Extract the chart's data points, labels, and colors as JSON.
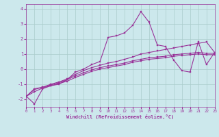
{
  "title": "",
  "xlabel": "Windchill (Refroidissement éolien,°C)",
  "ylabel": "",
  "bg_color": "#cce8ec",
  "line_color": "#993399",
  "grid_color": "#aacccc",
  "x_min": 0,
  "x_max": 23,
  "y_min": -2.5,
  "y_max": 4.3,
  "yticks": [
    -2,
    -1,
    0,
    1,
    2,
    3,
    4
  ],
  "xticks": [
    0,
    1,
    2,
    3,
    4,
    5,
    6,
    7,
    8,
    9,
    10,
    11,
    12,
    13,
    14,
    15,
    16,
    17,
    18,
    19,
    20,
    21,
    22,
    23
  ],
  "lines": [
    {
      "x": [
        0,
        1,
        2,
        3,
        4,
        5,
        6,
        7,
        8,
        9,
        10,
        11,
        12,
        13,
        14,
        15,
        16,
        17,
        18,
        19,
        20,
        21,
        22,
        23
      ],
      "y": [
        -1.8,
        -2.3,
        -1.3,
        -1.1,
        -1.0,
        -0.7,
        -0.2,
        0.0,
        0.3,
        0.5,
        2.1,
        2.2,
        2.4,
        2.9,
        3.8,
        3.1,
        1.6,
        1.5,
        0.6,
        -0.1,
        -0.2,
        1.8,
        0.3,
        1.1
      ]
    },
    {
      "x": [
        0,
        1,
        2,
        3,
        4,
        5,
        6,
        7,
        8,
        9,
        10,
        11,
        12,
        13,
        14,
        15,
        16,
        17,
        18,
        19,
        20,
        21,
        22,
        23
      ],
      "y": [
        -1.8,
        -1.3,
        -1.2,
        -1.0,
        -0.85,
        -0.65,
        -0.35,
        -0.1,
        0.1,
        0.25,
        0.4,
        0.5,
        0.65,
        0.8,
        1.0,
        1.1,
        1.2,
        1.3,
        1.4,
        1.5,
        1.6,
        1.7,
        1.8,
        1.1
      ]
    },
    {
      "x": [
        0,
        1,
        2,
        3,
        4,
        5,
        6,
        7,
        8,
        9,
        10,
        11,
        12,
        13,
        14,
        15,
        16,
        17,
        18,
        19,
        20,
        21,
        22,
        23
      ],
      "y": [
        -1.8,
        -1.35,
        -1.2,
        -1.05,
        -0.9,
        -0.7,
        -0.45,
        -0.25,
        -0.05,
        0.1,
        0.2,
        0.3,
        0.4,
        0.55,
        0.65,
        0.75,
        0.8,
        0.85,
        0.95,
        1.0,
        1.05,
        1.1,
        1.05,
        1.05
      ]
    },
    {
      "x": [
        0,
        1,
        2,
        3,
        4,
        5,
        6,
        7,
        8,
        9,
        10,
        11,
        12,
        13,
        14,
        15,
        16,
        17,
        18,
        19,
        20,
        21,
        22,
        23
      ],
      "y": [
        -1.8,
        -1.5,
        -1.25,
        -1.1,
        -0.95,
        -0.8,
        -0.55,
        -0.35,
        -0.15,
        0.0,
        0.1,
        0.2,
        0.3,
        0.45,
        0.55,
        0.65,
        0.7,
        0.75,
        0.85,
        0.9,
        0.95,
        1.0,
        0.95,
        0.95
      ]
    }
  ]
}
